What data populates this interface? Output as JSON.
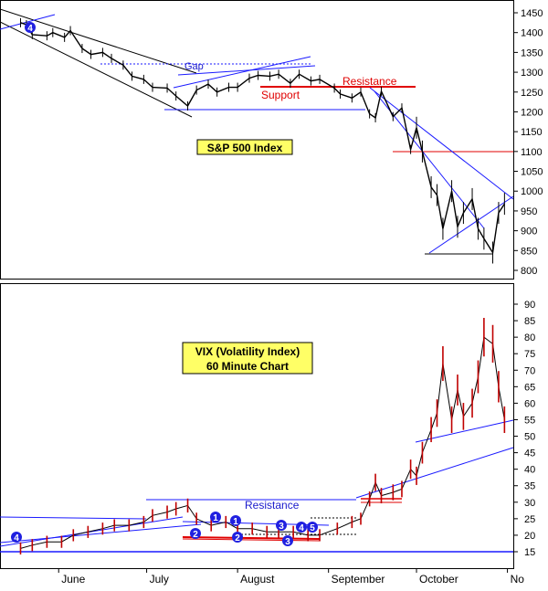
{
  "colors": {
    "price": "#000000",
    "vix_bar": "#c00000",
    "trendline": "#1a1aff",
    "resistance": "#e00000",
    "label_blue": "#1a1acc",
    "label_red": "#e00000",
    "box_fill": "#ffff66",
    "marker_fill": "#2020e0"
  },
  "chart_data": [
    {
      "type": "line",
      "title": "S&P 500 Index",
      "xlabel": "",
      "ylabel": "",
      "ylim": [
        780,
        1480
      ],
      "yticks": [
        800,
        850,
        900,
        950,
        1000,
        1050,
        1100,
        1150,
        1200,
        1250,
        1300,
        1350,
        1400,
        1450
      ],
      "grid": false,
      "series": [
        {
          "x": [
            "2008-05-19",
            "2008-05-21",
            "2008-05-23",
            "2008-05-28",
            "2008-05-30",
            "2008-06-03",
            "2008-06-05",
            "2008-06-09",
            "2008-06-12",
            "2008-06-16",
            "2008-06-19",
            "2008-06-23",
            "2008-06-26",
            "2008-06-30",
            "2008-07-03",
            "2008-07-08",
            "2008-07-11",
            "2008-07-15",
            "2008-07-18",
            "2008-07-22",
            "2008-07-25",
            "2008-07-29",
            "2008-08-01",
            "2008-08-05",
            "2008-08-08",
            "2008-08-12",
            "2008-08-15",
            "2008-08-19",
            "2008-08-22",
            "2008-08-26",
            "2008-08-29",
            "2008-09-03",
            "2008-09-05",
            "2008-09-09",
            "2008-09-12",
            "2008-09-15",
            "2008-09-17",
            "2008-09-19",
            "2008-09-23",
            "2008-09-26",
            "2008-09-29",
            "2008-10-01",
            "2008-10-03",
            "2008-10-06",
            "2008-10-08",
            "2008-10-10",
            "2008-10-13",
            "2008-10-15",
            "2008-10-17",
            "2008-10-20",
            "2008-10-22",
            "2008-10-24",
            "2008-10-27",
            "2008-10-29",
            "2008-10-31"
          ],
          "values": [
            1425,
            1420,
            1395,
            1392,
            1400,
            1388,
            1405,
            1360,
            1345,
            1350,
            1335,
            1318,
            1290,
            1282,
            1262,
            1260,
            1240,
            1215,
            1255,
            1270,
            1250,
            1262,
            1262,
            1285,
            1292,
            1290,
            1295,
            1272,
            1295,
            1278,
            1282,
            1260,
            1245,
            1235,
            1250,
            1195,
            1185,
            1252,
            1188,
            1210,
            1105,
            1160,
            1100,
            1010,
            990,
            905,
            1000,
            910,
            945,
            980,
            905,
            880,
            845,
            945,
            968
          ]
        }
      ],
      "annotations": {
        "gap": "Gap",
        "support": "Support",
        "resistance": "Resistance",
        "wave_label": "4"
      }
    },
    {
      "type": "line",
      "title": "VIX (Volatility Index)",
      "subtitle": "60 Minute Chart",
      "xlabel": "",
      "ylabel": "",
      "ylim": [
        10,
        95
      ],
      "yticks": [
        15,
        20,
        25,
        30,
        35,
        40,
        45,
        50,
        55,
        60,
        65,
        70,
        75,
        80,
        85,
        90
      ],
      "grid": false,
      "x_tick_labels": [
        "June",
        "July",
        "August",
        "September",
        "October",
        "No"
      ],
      "series": [
        {
          "x": [
            "2008-05-19",
            "2008-05-23",
            "2008-05-28",
            "2008-06-02",
            "2008-06-06",
            "2008-06-11",
            "2008-06-16",
            "2008-06-20",
            "2008-06-25",
            "2008-06-30",
            "2008-07-03",
            "2008-07-08",
            "2008-07-11",
            "2008-07-15",
            "2008-07-18",
            "2008-07-23",
            "2008-07-28",
            "2008-08-01",
            "2008-08-06",
            "2008-08-11",
            "2008-08-15",
            "2008-08-20",
            "2008-08-25",
            "2008-08-29",
            "2008-09-04",
            "2008-09-09",
            "2008-09-12",
            "2008-09-15",
            "2008-09-17",
            "2008-09-19",
            "2008-09-23",
            "2008-09-26",
            "2008-09-29",
            "2008-10-01",
            "2008-10-03",
            "2008-10-06",
            "2008-10-08",
            "2008-10-10",
            "2008-10-13",
            "2008-10-15",
            "2008-10-17",
            "2008-10-20",
            "2008-10-22",
            "2008-10-24",
            "2008-10-27",
            "2008-10-29",
            "2008-10-31"
          ],
          "values": [
            16,
            17,
            18,
            18,
            20,
            21,
            22,
            23,
            23,
            24,
            26,
            27,
            28,
            29,
            25,
            23,
            24,
            22,
            22,
            21,
            21,
            21,
            20,
            20,
            22,
            24,
            25,
            31,
            36,
            32,
            33,
            34,
            40,
            38,
            45,
            52,
            57,
            72,
            55,
            64,
            56,
            60,
            68,
            80,
            78,
            65,
            55
          ]
        }
      ],
      "annotations": {
        "resistance": "Resistance",
        "wave_labels": [
          "4",
          "1",
          "2",
          "1",
          "2",
          "3",
          "3",
          "4",
          "5"
        ]
      }
    }
  ]
}
